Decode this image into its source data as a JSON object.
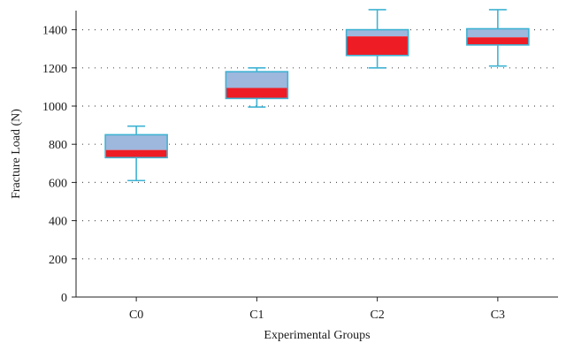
{
  "chart_data": {
    "type": "boxplot",
    "xlabel": "Experimental Groups",
    "ylabel": "Fracture Load (N)",
    "ylim": [
      0,
      1500
    ],
    "yticks": [
      0,
      200,
      400,
      600,
      800,
      1000,
      1200,
      1400
    ],
    "grid": "horizontal-dotted",
    "categories": [
      "C0",
      "C1",
      "C2",
      "C3"
    ],
    "boxes": [
      {
        "name": "C0",
        "min": 610,
        "q1": 730,
        "median": 770,
        "q3": 850,
        "max": 895
      },
      {
        "name": "C1",
        "min": 995,
        "q1": 1040,
        "median": 1095,
        "q3": 1180,
        "max": 1200
      },
      {
        "name": "C2",
        "min": 1200,
        "q1": 1265,
        "median": 1365,
        "q3": 1400,
        "max": 1505
      },
      {
        "name": "C3",
        "min": 1210,
        "q1": 1320,
        "median": 1360,
        "q3": 1405,
        "max": 1505
      }
    ],
    "colors": {
      "upper_box": "#9db7dd",
      "lower_box": "#ee1c25",
      "outline": "#3fb3d3",
      "whisker": "#3fb3d3"
    }
  }
}
